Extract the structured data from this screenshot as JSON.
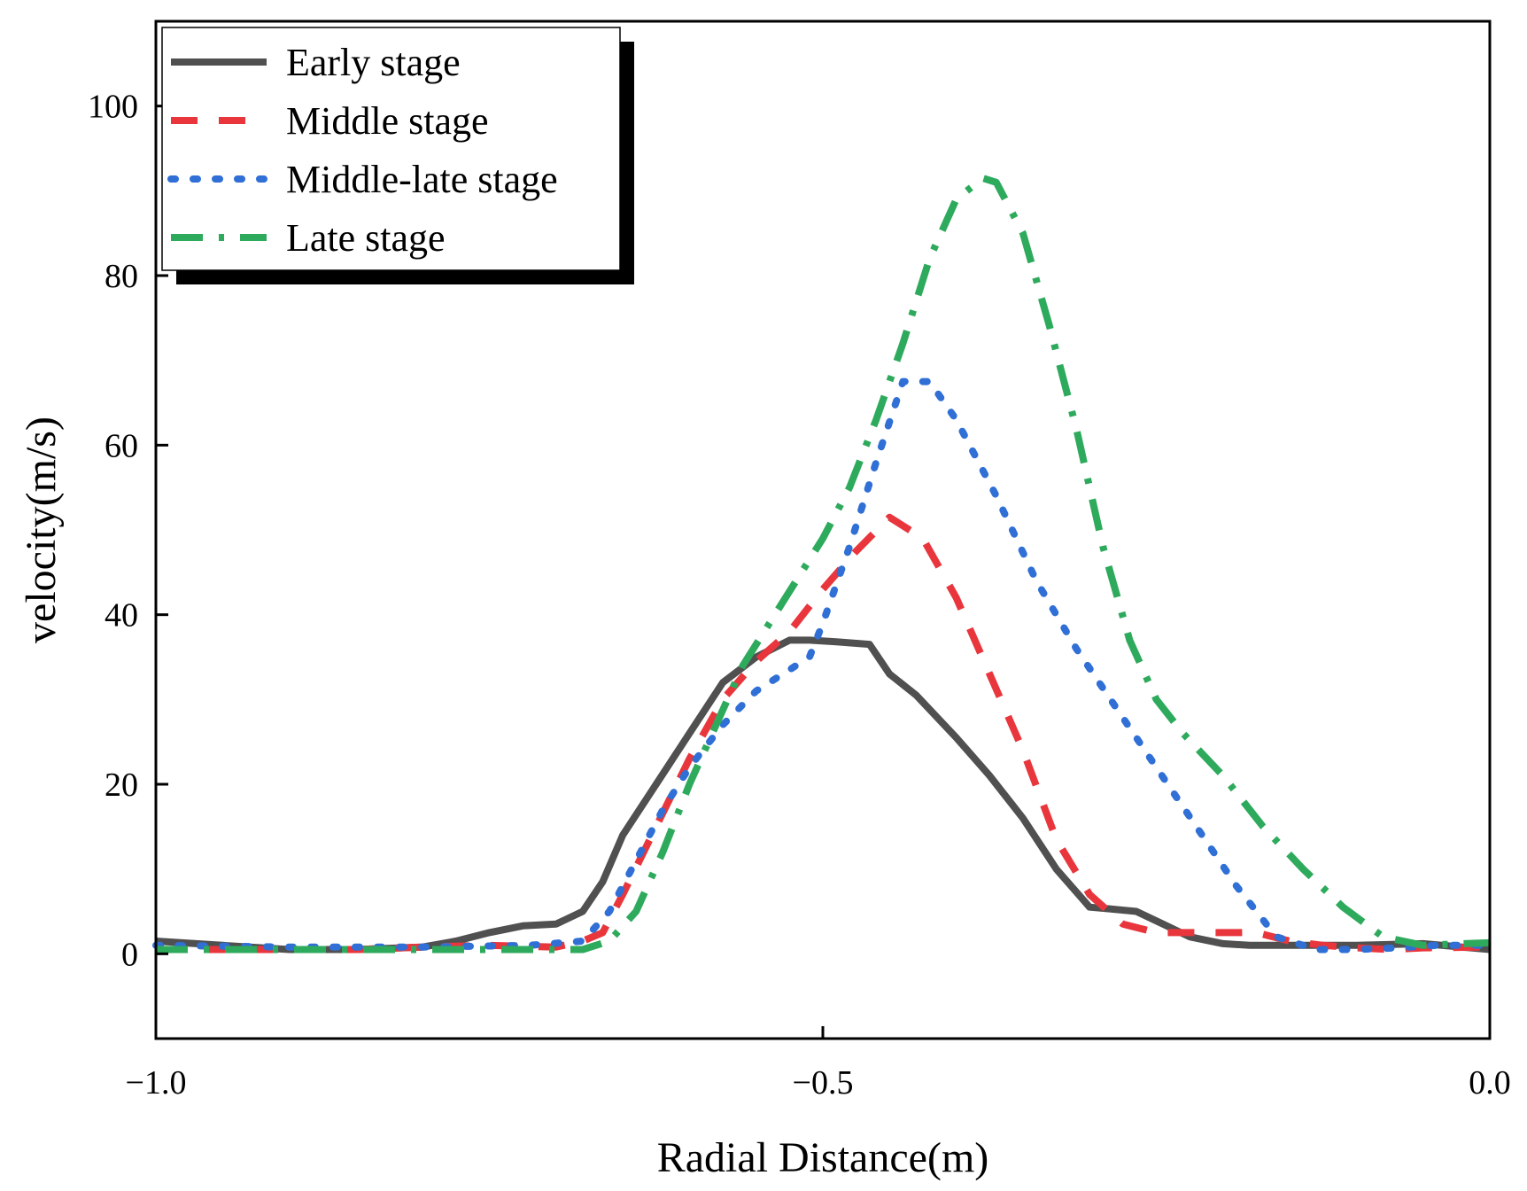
{
  "chart_data": {
    "type": "line",
    "title": "",
    "xlabel": "Radial Distance(m)",
    "ylabel": "velocity(m/s)",
    "xlim": [
      -1.0,
      0.0
    ],
    "ylim": [
      -10,
      110
    ],
    "xticks": [
      -1.0,
      -0.5,
      0.0
    ],
    "xtick_labels": [
      "−1.0",
      "−0.5",
      "0.0"
    ],
    "yticks": [
      0,
      20,
      40,
      60,
      80,
      100
    ],
    "ytick_labels": [
      "0",
      "20",
      "40",
      "60",
      "80",
      "100"
    ],
    "grid": false,
    "legend_position": "top-left",
    "series": [
      {
        "name": "Early stage",
        "color": "#505050",
        "style": "solid",
        "x": [
          -1.0,
          -0.95,
          -0.9,
          -0.85,
          -0.8,
          -0.775,
          -0.75,
          -0.725,
          -0.7,
          -0.68,
          -0.665,
          -0.65,
          -0.625,
          -0.6,
          -0.575,
          -0.55,
          -0.525,
          -0.51,
          -0.49,
          -0.465,
          -0.45,
          -0.43,
          -0.4,
          -0.375,
          -0.35,
          -0.325,
          -0.3,
          -0.285,
          -0.265,
          -0.245,
          -0.225,
          -0.2,
          -0.18,
          -0.15,
          -0.1,
          -0.05,
          0.0
        ],
        "y": [
          1.5,
          1.0,
          0.5,
          0.5,
          0.8,
          1.5,
          2.5,
          3.3,
          3.5,
          5.0,
          8.5,
          14.0,
          20.0,
          26.0,
          32.0,
          35.0,
          37.0,
          37.0,
          36.8,
          36.5,
          33.0,
          30.5,
          25.5,
          21.0,
          16.0,
          10.0,
          5.5,
          5.3,
          5.0,
          3.5,
          2.0,
          1.2,
          1.0,
          1.0,
          1.0,
          1.2,
          0.5
        ]
      },
      {
        "name": "Middle stage",
        "color": "#e8363c",
        "style": "dashed",
        "x": [
          -1.0,
          -0.95,
          -0.9,
          -0.85,
          -0.8,
          -0.75,
          -0.7,
          -0.68,
          -0.665,
          -0.65,
          -0.625,
          -0.6,
          -0.575,
          -0.55,
          -0.525,
          -0.5,
          -0.475,
          -0.45,
          -0.425,
          -0.4,
          -0.375,
          -0.35,
          -0.325,
          -0.3,
          -0.275,
          -0.25,
          -0.225,
          -0.2,
          -0.175,
          -0.15,
          -0.125,
          -0.1,
          -0.075,
          -0.05,
          0.0
        ],
        "y": [
          0.5,
          0.5,
          0.5,
          0.5,
          0.8,
          1.0,
          0.8,
          1.5,
          2.5,
          7.0,
          15.0,
          23.0,
          30.0,
          34.5,
          38.0,
          43.0,
          47.5,
          51.5,
          49.0,
          42.0,
          33.0,
          24.0,
          13.5,
          7.0,
          3.5,
          2.5,
          2.5,
          2.5,
          2.5,
          1.5,
          1.0,
          0.7,
          0.5,
          0.7,
          0.8
        ]
      },
      {
        "name": "Middle-late stage",
        "color": "#2f6fd6",
        "style": "dotted",
        "x": [
          -1.0,
          -0.9,
          -0.8,
          -0.72,
          -0.68,
          -0.66,
          -0.64,
          -0.62,
          -0.6,
          -0.575,
          -0.55,
          -0.53,
          -0.51,
          -0.5,
          -0.48,
          -0.46,
          -0.44,
          -0.42,
          -0.4,
          -0.37,
          -0.34,
          -0.31,
          -0.28,
          -0.25,
          -0.22,
          -0.19,
          -0.16,
          -0.13,
          -0.1,
          -0.07,
          -0.04,
          0.0
        ],
        "y": [
          1.0,
          0.8,
          0.8,
          1.0,
          1.5,
          5.0,
          11.0,
          17.0,
          22.0,
          27.0,
          31.0,
          33.0,
          35.0,
          39.0,
          48.0,
          58.0,
          67.5,
          67.5,
          63.0,
          54.0,
          44.0,
          36.0,
          29.0,
          22.0,
          15.0,
          8.0,
          2.0,
          0.5,
          0.5,
          0.7,
          1.0,
          1.0
        ]
      },
      {
        "name": "Late stage",
        "color": "#2eaa5c",
        "style": "dashdot",
        "x": [
          -1.0,
          -0.9,
          -0.8,
          -0.72,
          -0.68,
          -0.66,
          -0.64,
          -0.62,
          -0.6,
          -0.58,
          -0.56,
          -0.54,
          -0.52,
          -0.5,
          -0.48,
          -0.46,
          -0.44,
          -0.42,
          -0.4,
          -0.38,
          -0.37,
          -0.35,
          -0.33,
          -0.31,
          -0.29,
          -0.27,
          -0.25,
          -0.23,
          -0.2,
          -0.17,
          -0.14,
          -0.11,
          -0.08,
          -0.05,
          -0.02,
          0.0
        ],
        "y": [
          0.5,
          0.5,
          0.5,
          0.5,
          0.5,
          1.5,
          5.0,
          12.0,
          20.0,
          27.0,
          34.0,
          39.0,
          44.0,
          49.0,
          55.0,
          63.0,
          72.0,
          82.0,
          89.0,
          91.5,
          91.0,
          85.0,
          74.0,
          62.0,
          48.0,
          37.0,
          30.0,
          26.0,
          21.0,
          15.0,
          10.0,
          5.5,
          2.0,
          1.0,
          1.2,
          1.3
        ]
      }
    ]
  }
}
